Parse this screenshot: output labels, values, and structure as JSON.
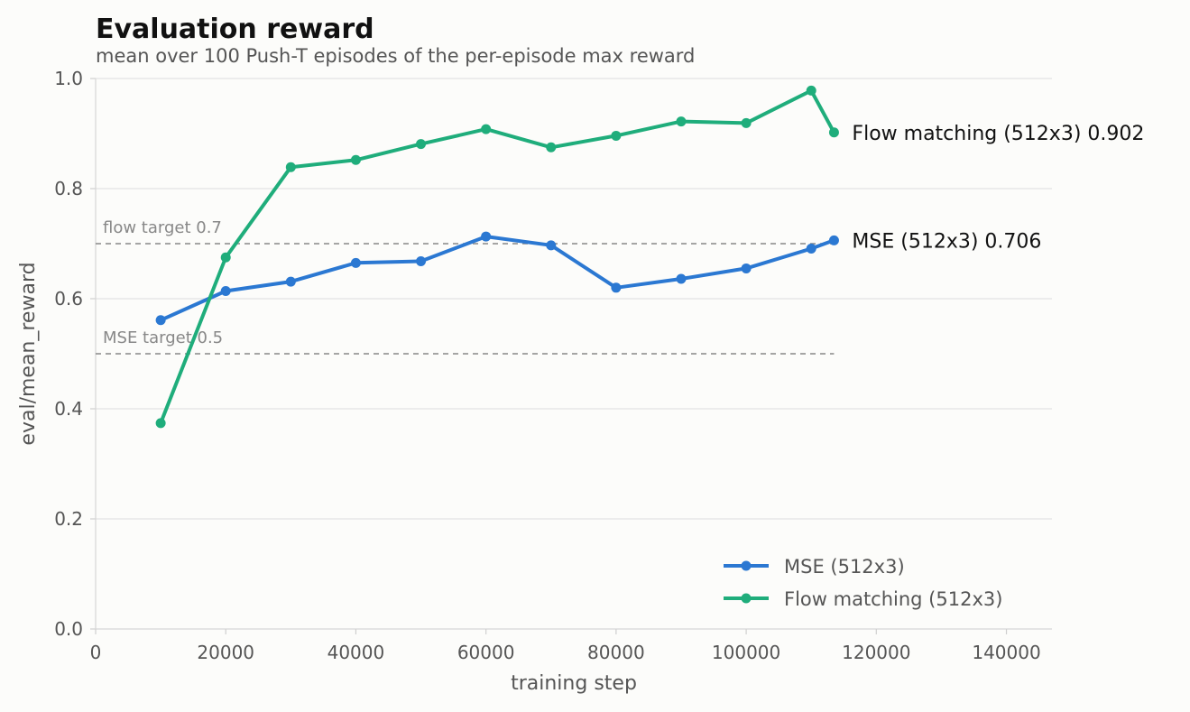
{
  "chart_data": {
    "type": "line",
    "title": "Evaluation reward",
    "subtitle": "mean over 100 Push-T episodes of the per-episode max reward",
    "xlabel": "training step",
    "ylabel": "eval/mean_reward",
    "xlim": [
      0,
      147000
    ],
    "ylim": [
      0,
      1.0
    ],
    "x_ticks": [
      0,
      20000,
      40000,
      60000,
      80000,
      100000,
      120000,
      140000
    ],
    "x_tick_labels": [
      "0",
      "20000",
      "40000",
      "60000",
      "80000",
      "100000",
      "120000",
      "140000"
    ],
    "y_ticks": [
      0.0,
      0.2,
      0.4,
      0.6,
      0.8,
      1.0
    ],
    "y_tick_labels": [
      "0.0",
      "0.2",
      "0.4",
      "0.6",
      "0.8",
      "1.0"
    ],
    "grid": "horizontal",
    "legend_position": "bottom-right",
    "series": [
      {
        "name": "MSE (512x3)",
        "color": "#2b78d2",
        "x": [
          10000,
          20000,
          30000,
          40000,
          50000,
          60000,
          70000,
          80000,
          90000,
          100000,
          110000,
          113500
        ],
        "y": [
          0.561,
          0.614,
          0.631,
          0.665,
          0.668,
          0.713,
          0.697,
          0.62,
          0.636,
          0.655,
          0.691,
          0.706
        ],
        "end_label": "MSE (512x3)  0.706"
      },
      {
        "name": "Flow matching (512x3)",
        "color": "#1fad7b",
        "x": [
          10000,
          20000,
          30000,
          40000,
          50000,
          60000,
          70000,
          80000,
          90000,
          100000,
          110000,
          113500
        ],
        "y": [
          0.374,
          0.675,
          0.839,
          0.852,
          0.881,
          0.908,
          0.875,
          0.896,
          0.922,
          0.919,
          0.978,
          0.902
        ],
        "end_label": "Flow matching (512x3)  0.902"
      }
    ],
    "reference_lines": [
      {
        "label": "flow target 0.7",
        "y": 0.7,
        "x_end": 113500
      },
      {
        "label": "MSE target 0.5",
        "y": 0.5,
        "x_end": 113500
      }
    ]
  }
}
